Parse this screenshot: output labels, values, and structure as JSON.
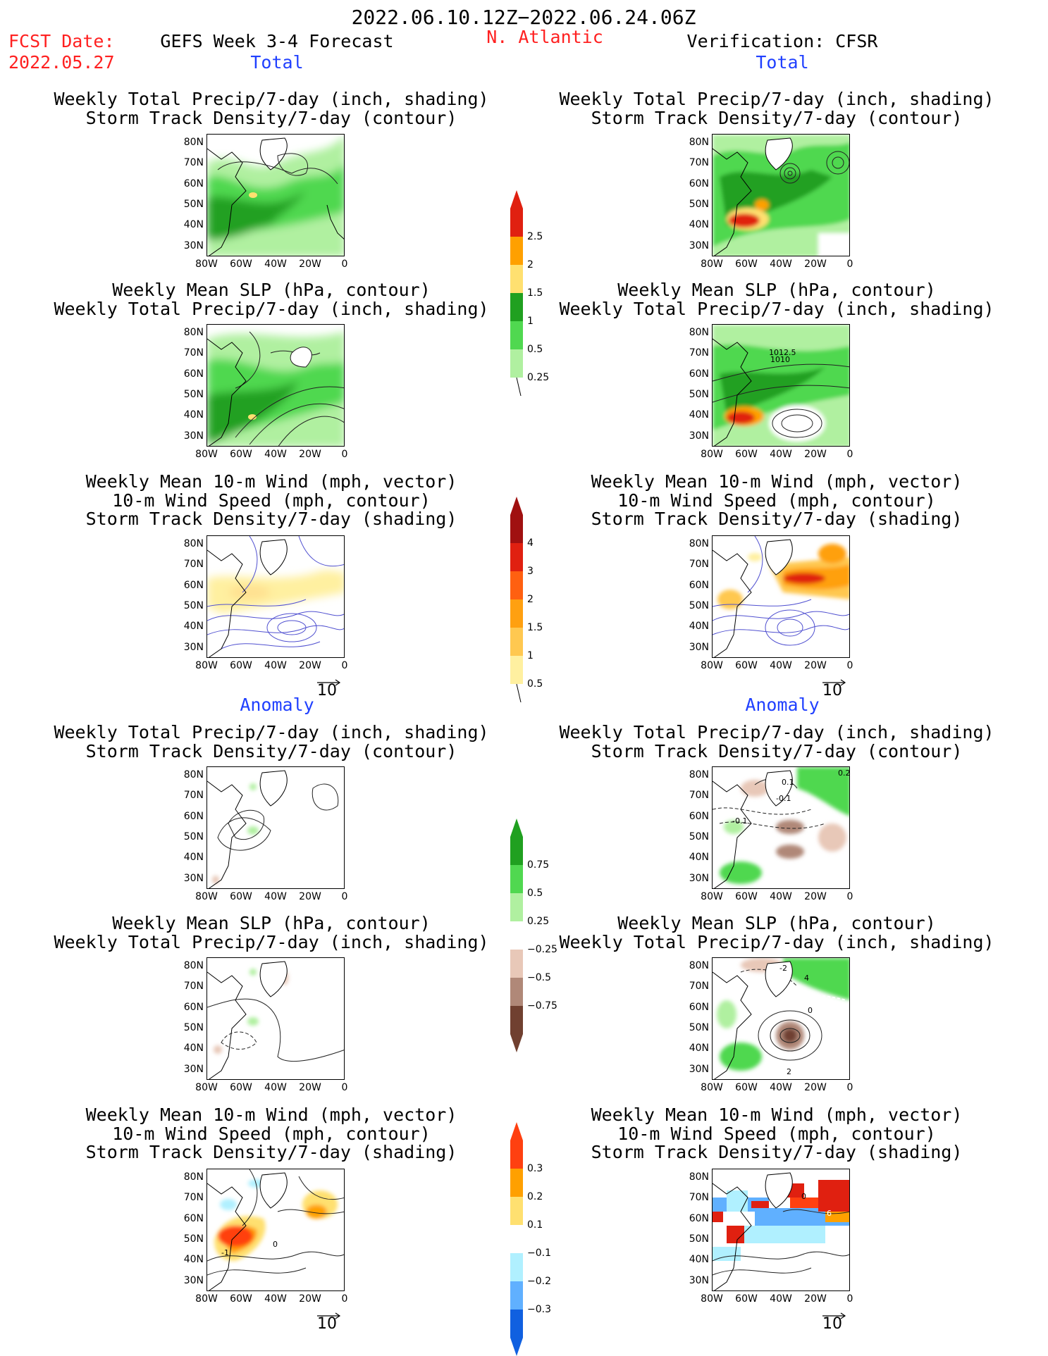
{
  "header": {
    "date_range": "2022.06.10.12Z−2022.06.24.06Z",
    "fcst_label": "FCST Date:",
    "fcst_date": "2022.05.27",
    "model": "GEFS Week 3-4 Forecast",
    "region": "N. Atlantic",
    "verification": "Verification: CFSR"
  },
  "sections": {
    "total": "Total",
    "anomaly": "Anomaly"
  },
  "titles": {
    "precip_storm": [
      "Weekly Total Precip/7-day (inch, shading)",
      "Storm Track Density/7-day (contour)"
    ],
    "slp_precip": [
      "Weekly Mean SLP (hPa, contour)",
      "Weekly Total Precip/7-day (inch, shading)"
    ],
    "wind_storm": [
      "Weekly Mean 10-m Wind (mph, vector)",
      "10-m Wind Speed (mph, contour)",
      "Storm Track Density/7-day (shading)"
    ]
  },
  "axes": {
    "lat_labels": [
      "80N",
      "70N",
      "60N",
      "50N",
      "40N",
      "30N"
    ],
    "lon_labels": [
      "80W",
      "60W",
      "40W",
      "20W",
      "0"
    ]
  },
  "vector_ref": "10",
  "contour_labels": {
    "slp_total_cfsr": [
      "1012.5",
      "1010"
    ],
    "precip_anom_cfsr": [
      "0.2",
      "0.1",
      "-0.1",
      "-0.1"
    ],
    "slp_anom_cfsr": [
      "-2",
      "4",
      "0",
      "2"
    ],
    "wind_anom_gefs": [
      "0",
      "-1"
    ],
    "wind_anom_cfsr": [
      "0",
      "6"
    ]
  },
  "colorbars": {
    "precip_total": {
      "labels": [
        "2.5",
        "2",
        "1.5",
        "1",
        "0.5",
        "0.25"
      ],
      "colors": [
        "#e02010",
        "#ffa000",
        "#ffe070",
        "#20a020",
        "#50d850",
        "#b0f0a0"
      ]
    },
    "storm_total": {
      "labels": [
        "4",
        "3",
        "2",
        "1.5",
        "1",
        "0.5"
      ],
      "colors": [
        "#a01010",
        "#e02010",
        "#ff6010",
        "#ffa010",
        "#ffc850",
        "#fff0a0"
      ]
    },
    "precip_anom": {
      "labels": [
        "0.75",
        "0.5",
        "0.25",
        "−0.25",
        "−0.5",
        "−0.75"
      ],
      "colors": [
        "#20a020",
        "#50d850",
        "#b0f0a0",
        "#ffffff",
        "#e8c8b8",
        "#b08878",
        "#704030"
      ]
    },
    "storm_anom": {
      "labels": [
        "0.3",
        "0.2",
        "0.1",
        "−0.1",
        "−0.2",
        "−0.3"
      ],
      "colors": [
        "#ff4010",
        "#ffa000",
        "#ffe070",
        "#ffffff",
        "#b0f0ff",
        "#60b0ff",
        "#1060e0"
      ]
    }
  }
}
